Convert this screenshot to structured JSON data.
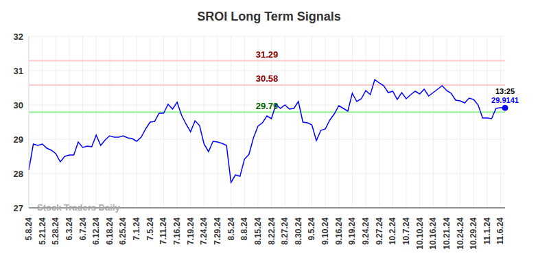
{
  "chart_data": {
    "type": "line",
    "title": "SROI Long Term Signals",
    "watermark": "Stock Traders Daily",
    "color": "#0000ff",
    "grid": true,
    "ylim": [
      27,
      32
    ],
    "yticks": [
      27,
      28,
      29,
      30,
      31,
      32
    ],
    "categories": [
      "5.8.24",
      null,
      null,
      "5.21.24",
      null,
      null,
      "5.28.24",
      null,
      null,
      "6.3.24",
      null,
      null,
      "6.7.24",
      null,
      null,
      "6.12.24",
      null,
      null,
      "6.18.24",
      null,
      null,
      "6.25.24",
      null,
      null,
      "7.1.24",
      null,
      null,
      "7.5.24",
      null,
      null,
      "7.11.24",
      null,
      null,
      "7.16.24",
      null,
      null,
      "7.19.24",
      null,
      null,
      "7.24.24",
      null,
      null,
      "7.29.24",
      null,
      null,
      "8.5.24",
      null,
      null,
      "8.8.24",
      null,
      null,
      "8.15.24",
      null,
      null,
      "8.22.24",
      null,
      null,
      "8.27.24",
      null,
      null,
      "8.30.24",
      null,
      null,
      "9.5.24",
      null,
      null,
      "9.10.24",
      null,
      null,
      "9.16.24",
      null,
      null,
      "9.19.24",
      null,
      null,
      "9.24.24",
      null,
      null,
      "9.27.24",
      null,
      null,
      "10.2.24",
      null,
      null,
      "10.7.24",
      null,
      null,
      "10.10.24",
      null,
      null,
      "10.16.24",
      null,
      null,
      "10.21.24",
      null,
      null,
      "10.24.24",
      null,
      null,
      "10.29.24",
      null,
      null,
      "11.1.24",
      null,
      null,
      "11.6.24",
      null
    ],
    "values": [
      28.1,
      28.86,
      28.82,
      28.86,
      28.74,
      28.68,
      28.58,
      28.34,
      28.5,
      28.54,
      28.54,
      28.92,
      28.76,
      28.8,
      28.78,
      29.12,
      28.82,
      28.98,
      29.1,
      29.06,
      29.06,
      29.1,
      29.04,
      29.02,
      28.94,
      29.06,
      29.3,
      29.5,
      29.52,
      29.76,
      29.76,
      30.02,
      29.88,
      30.08,
      29.7,
      29.44,
      29.22,
      29.54,
      29.4,
      28.86,
      28.64,
      28.94,
      28.92,
      28.88,
      28.82,
      27.74,
      27.96,
      27.92,
      28.42,
      28.56,
      29.04,
      29.38,
      29.48,
      29.68,
      29.6,
      30.02,
      29.9,
      30.0,
      29.88,
      29.9,
      30.1,
      29.5,
      29.48,
      29.42,
      28.96,
      29.26,
      29.3,
      29.56,
      29.74,
      29.98,
      29.9,
      29.82,
      30.34,
      30.1,
      30.18,
      30.42,
      30.3,
      30.74,
      30.64,
      30.56,
      30.36,
      30.4,
      30.16,
      30.36,
      30.18,
      30.3,
      30.4,
      30.32,
      30.46,
      30.26,
      30.36,
      30.46,
      30.56,
      30.42,
      30.34,
      30.14,
      30.12,
      30.06,
      30.2,
      30.16,
      30.0,
      29.62,
      29.62,
      29.6,
      29.9,
      29.92,
      29.9141
    ],
    "reference_lines": [
      {
        "value": 31.29,
        "color": "#ffcccc",
        "label_color": "#8b0000"
      },
      {
        "value": 30.58,
        "color": "#ffcccc",
        "label_color": "#8b0000"
      },
      {
        "value": 29.79,
        "color": "#90ee90",
        "label_color": "#006400"
      }
    ],
    "annotation": {
      "time": "13:25",
      "color": "#0000ff"
    }
  }
}
